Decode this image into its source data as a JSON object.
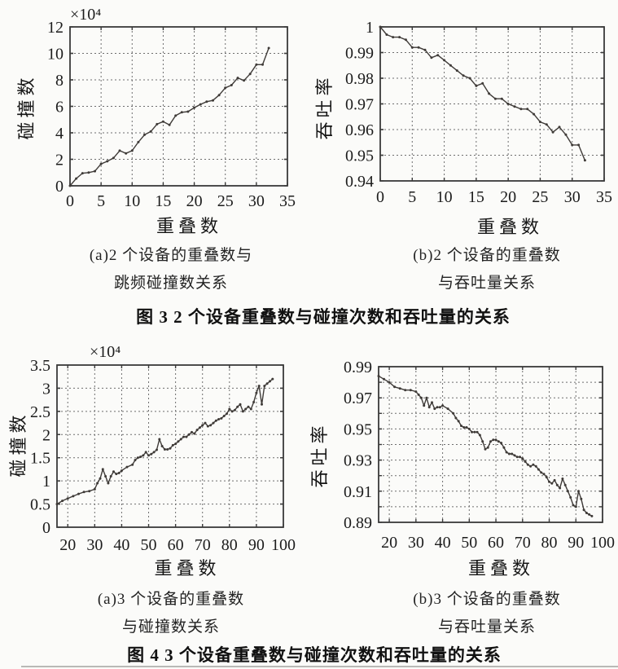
{
  "colors": {
    "line": "#3f3b38",
    "grid": "#6e6e6e",
    "frame": "#3a3a3a",
    "text": "#1c1c1c",
    "background": "#fbfbf9"
  },
  "figure3": {
    "sub_a": [
      "(a)2 个设备的重叠数与",
      "跳频碰撞数关系"
    ],
    "sub_b": [
      "(b)2 个设备的重叠数",
      "与吞吐量关系"
    ],
    "caption": "图 3  2 个设备重叠数与碰撞次数和吞吐量的关系"
  },
  "figure4": {
    "sub_a": [
      "(a)3 个设备的重叠数",
      "与碰撞数关系"
    ],
    "sub_b": [
      "(b)3 个设备的重叠数",
      "与吞吐量关系"
    ],
    "caption": "图 4  3 个设备重叠数与碰撞次数和吞吐量的关系"
  },
  "chart_data": [
    {
      "type": "line",
      "panel": "figure3-a",
      "xlabel": "重叠数",
      "ylabel": "碰撞数",
      "y_unit": "×10⁴",
      "xlim": [
        0,
        35
      ],
      "ylim": [
        0,
        12
      ],
      "xticks": [
        0,
        5,
        10,
        15,
        20,
        25,
        30,
        35
      ],
      "xtick_labels": [
        "0",
        "5",
        "10",
        "15",
        "20",
        "25",
        "30",
        "35"
      ],
      "yticks": [
        0,
        2,
        4,
        6,
        8,
        10,
        12
      ],
      "ytick_labels": [
        "0",
        "2",
        "4",
        "6",
        "8",
        "10",
        "12"
      ],
      "xgrid": [
        5,
        10,
        15,
        20,
        25,
        30
      ],
      "ygrid": [
        2,
        4,
        6,
        8,
        10
      ],
      "grid": "dashed",
      "x": [
        0,
        1,
        2,
        3,
        4,
        5,
        6,
        7,
        8,
        9,
        10,
        11,
        12,
        13,
        14,
        15,
        16,
        17,
        18,
        19,
        20,
        21,
        22,
        23,
        24,
        25,
        26,
        27,
        28,
        29,
        30,
        31,
        32
      ],
      "y": [
        0,
        0.55,
        0.95,
        1.0,
        1.1,
        1.65,
        1.85,
        2.1,
        2.65,
        2.45,
        2.65,
        3.3,
        3.85,
        4.1,
        4.65,
        4.85,
        4.6,
        5.3,
        5.55,
        5.6,
        5.9,
        6.15,
        6.35,
        6.45,
        6.85,
        7.4,
        7.6,
        8.15,
        7.95,
        8.45,
        9.15,
        9.15,
        10.4
      ]
    },
    {
      "type": "line",
      "panel": "figure3-b",
      "xlabel": "重叠数",
      "ylabel": "吞吐率",
      "y_unit": "",
      "xlim": [
        0,
        35
      ],
      "ylim": [
        0.94,
        1.0
      ],
      "xticks": [
        0,
        5,
        10,
        15,
        20,
        25,
        30,
        35
      ],
      "xtick_labels": [
        "0",
        "5",
        "10",
        "15",
        "20",
        "25",
        "30",
        "35"
      ],
      "yticks": [
        0.94,
        0.95,
        0.96,
        0.97,
        0.98,
        0.99,
        1.0
      ],
      "ytick_labels": [
        "0.94",
        "0.95",
        "0.96",
        "0.97",
        "0.98",
        "0.99",
        "1"
      ],
      "xgrid": [
        5,
        10,
        15,
        20,
        25,
        30
      ],
      "ygrid": [
        0.95,
        0.96,
        0.97,
        0.98,
        0.99
      ],
      "grid": "dashed",
      "x": [
        0,
        1,
        2,
        3,
        4,
        5,
        6,
        7,
        8,
        9,
        10,
        11,
        12,
        13,
        14,
        15,
        16,
        17,
        18,
        19,
        20,
        21,
        22,
        23,
        24,
        25,
        26,
        27,
        28,
        29,
        30,
        31,
        32
      ],
      "y": [
        1.0,
        0.997,
        0.996,
        0.996,
        0.995,
        0.992,
        0.992,
        0.991,
        0.988,
        0.989,
        0.987,
        0.985,
        0.983,
        0.981,
        0.98,
        0.977,
        0.978,
        0.974,
        0.972,
        0.972,
        0.97,
        0.969,
        0.968,
        0.968,
        0.966,
        0.963,
        0.962,
        0.959,
        0.961,
        0.958,
        0.954,
        0.954,
        0.948
      ]
    },
    {
      "type": "line",
      "panel": "figure4-a",
      "xlabel": "重叠数",
      "ylabel": "碰撞数",
      "y_unit": "×10⁴",
      "xlim": [
        16,
        100
      ],
      "ylim": [
        0,
        3.5
      ],
      "xticks": [
        20,
        30,
        40,
        50,
        60,
        70,
        80,
        90,
        100
      ],
      "xtick_labels": [
        "20",
        "30",
        "40",
        "50",
        "60",
        "70",
        "80",
        "90",
        "100"
      ],
      "yticks": [
        0,
        0.5,
        1,
        1.5,
        2,
        2.5,
        3,
        3.5
      ],
      "ytick_labels": [
        "0",
        "0.5",
        "1",
        "1.5",
        "2",
        "2.5",
        "3",
        "3.5"
      ],
      "xgrid": [
        20,
        30,
        40,
        50,
        60,
        70,
        80,
        90
      ],
      "ygrid": [
        0.5,
        1,
        1.5,
        2,
        2.5,
        3
      ],
      "grid": "dashed",
      "x": [
        16,
        18,
        20,
        22,
        24,
        26,
        28,
        30,
        31,
        32,
        33,
        34,
        35,
        36,
        37,
        38,
        39,
        40,
        42,
        44,
        45,
        46,
        47,
        48,
        49,
        50,
        51,
        52,
        53,
        54,
        55,
        56,
        57,
        58,
        59,
        60,
        61,
        62,
        63,
        64,
        65,
        66,
        67,
        68,
        69,
        70,
        71,
        72,
        73,
        74,
        75,
        76,
        77,
        78,
        79,
        80,
        81,
        82,
        83,
        84,
        85,
        86,
        87,
        88,
        89,
        90,
        91,
        92,
        93,
        94,
        95,
        96
      ],
      "y": [
        0.5,
        0.57,
        0.62,
        0.67,
        0.72,
        0.76,
        0.78,
        0.82,
        0.95,
        1.05,
        1.25,
        1.1,
        0.95,
        1.1,
        1.2,
        1.15,
        1.17,
        1.22,
        1.3,
        1.35,
        1.45,
        1.5,
        1.52,
        1.55,
        1.62,
        1.55,
        1.58,
        1.62,
        1.67,
        1.9,
        1.75,
        1.68,
        1.68,
        1.7,
        1.77,
        1.8,
        1.85,
        1.9,
        1.95,
        1.95,
        2.0,
        2.05,
        2.02,
        2.1,
        2.15,
        2.2,
        2.25,
        2.18,
        2.2,
        2.25,
        2.3,
        2.33,
        2.35,
        2.4,
        2.45,
        2.55,
        2.5,
        2.53,
        2.6,
        2.65,
        2.5,
        2.55,
        2.6,
        2.55,
        2.7,
        2.9,
        3.05,
        2.65,
        3.05,
        3.1,
        3.15,
        3.2
      ]
    },
    {
      "type": "line",
      "panel": "figure4-b",
      "xlabel": "重叠数",
      "ylabel": "吞吐率",
      "y_unit": "",
      "xlim": [
        16,
        100
      ],
      "ylim": [
        0.89,
        0.99
      ],
      "xticks": [
        20,
        30,
        40,
        50,
        60,
        70,
        80,
        90,
        100
      ],
      "xtick_labels": [
        "20",
        "30",
        "40",
        "50",
        "60",
        "70",
        "80",
        "90",
        "100"
      ],
      "yticks": [
        0.89,
        0.91,
        0.93,
        0.95,
        0.97,
        0.99
      ],
      "ytick_labels": [
        "0.89",
        "0.91",
        "0.93",
        "0.95",
        "0.97",
        "0.99"
      ],
      "xgrid": [
        20,
        30,
        40,
        50,
        60,
        70,
        80,
        90
      ],
      "ygrid": [
        0.9,
        0.91,
        0.92,
        0.93,
        0.94,
        0.95,
        0.96,
        0.97,
        0.98
      ],
      "grid": "dashed",
      "x": [
        16,
        18,
        20,
        22,
        24,
        26,
        28,
        30,
        31,
        32,
        33,
        34,
        35,
        36,
        37,
        38,
        39,
        40,
        42,
        44,
        45,
        46,
        47,
        48,
        49,
        50,
        51,
        52,
        53,
        54,
        55,
        56,
        57,
        58,
        59,
        60,
        61,
        62,
        63,
        64,
        65,
        66,
        67,
        68,
        69,
        70,
        71,
        72,
        73,
        74,
        75,
        76,
        77,
        78,
        79,
        80,
        81,
        82,
        83,
        84,
        85,
        86,
        87,
        88,
        89,
        90,
        91,
        92,
        93,
        94,
        95,
        96
      ],
      "y": [
        0.984,
        0.982,
        0.98,
        0.977,
        0.976,
        0.975,
        0.975,
        0.974,
        0.972,
        0.97,
        0.965,
        0.97,
        0.964,
        0.967,
        0.963,
        0.964,
        0.964,
        0.965,
        0.963,
        0.96,
        0.957,
        0.955,
        0.952,
        0.951,
        0.951,
        0.95,
        0.948,
        0.948,
        0.948,
        0.946,
        0.942,
        0.937,
        0.938,
        0.942,
        0.943,
        0.943,
        0.942,
        0.941,
        0.938,
        0.935,
        0.934,
        0.934,
        0.933,
        0.932,
        0.932,
        0.931,
        0.929,
        0.927,
        0.926,
        0.927,
        0.926,
        0.924,
        0.922,
        0.921,
        0.919,
        0.916,
        0.915,
        0.917,
        0.914,
        0.912,
        0.918,
        0.914,
        0.91,
        0.906,
        0.901,
        0.9,
        0.91,
        0.905,
        0.898,
        0.896,
        0.895,
        0.894
      ]
    }
  ]
}
